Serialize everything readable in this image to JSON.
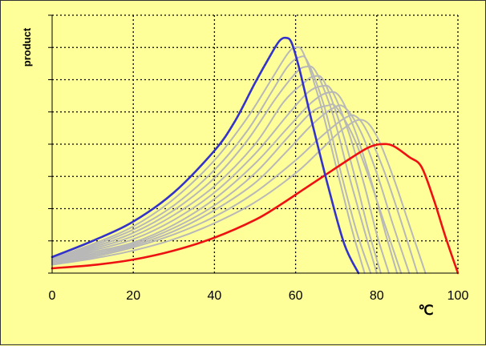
{
  "chart_data": {
    "type": "line",
    "title": "",
    "xlabel": "℃",
    "ylabel": "product",
    "xlim": [
      0,
      100
    ],
    "ylim": [
      0,
      8
    ],
    "x_ticks": [
      "0",
      "20",
      "40",
      "60",
      "80",
      "100"
    ],
    "y_gridlines": 8,
    "y_tick_labels_shown": false,
    "grid": true,
    "legend": "none",
    "colors": {
      "background": "#ffff99",
      "blue": "#3333cc",
      "red": "#ee1111",
      "gray": "#b8b8b8",
      "grid": "#000000"
    },
    "series": [
      {
        "color": "#3333cc",
        "x": [
          0,
          10,
          20,
          30,
          40,
          45,
          50,
          54,
          56,
          57.5,
          59,
          61,
          64,
          68,
          72,
          75.5
        ],
        "y": [
          0.5,
          1,
          1.6,
          2.5,
          3.8,
          4.7,
          5.9,
          6.8,
          7.2,
          7.3,
          7.15,
          6.3,
          4.7,
          2.7,
          0.9,
          0
        ]
      },
      {
        "color": "#b8b8b8",
        "x": [
          0,
          10,
          20,
          30,
          40,
          48,
          54,
          58,
          60,
          62,
          66,
          70,
          74,
          77
        ],
        "y": [
          0.45,
          0.9,
          1.45,
          2.3,
          3.5,
          4.8,
          6,
          6.8,
          7,
          6.8,
          5.3,
          3.3,
          1.3,
          0
        ]
      },
      {
        "color": "#b8b8b8",
        "x": [
          0,
          10,
          20,
          30,
          40,
          48,
          54,
          58,
          61,
          63,
          67,
          71,
          75,
          78.5
        ],
        "y": [
          0.42,
          0.85,
          1.35,
          2.1,
          3.2,
          4.4,
          5.6,
          6.4,
          6.7,
          6.55,
          5.2,
          3.2,
          1.3,
          0
        ]
      },
      {
        "color": "#b8b8b8",
        "x": [
          0,
          10,
          20,
          30,
          40,
          48,
          55,
          60,
          62.5,
          65,
          69,
          73,
          77,
          80
        ],
        "y": [
          0.4,
          0.8,
          1.25,
          1.95,
          2.95,
          4.1,
          5.4,
          6.2,
          6.4,
          6.25,
          5,
          3.1,
          1.3,
          0
        ]
      },
      {
        "color": "#b8b8b8",
        "x": [
          0,
          10,
          20,
          30,
          40,
          50,
          57,
          62,
          64.5,
          67,
          71,
          75,
          78,
          81
        ],
        "y": [
          0.38,
          0.75,
          1.15,
          1.8,
          2.7,
          4,
          5.3,
          5.9,
          6.1,
          5.95,
          4.6,
          2.8,
          1.3,
          0
        ]
      },
      {
        "color": "#b8b8b8",
        "x": [
          0,
          10,
          20,
          30,
          40,
          50,
          58,
          63,
          66.5,
          69,
          73,
          77,
          80,
          83
        ],
        "y": [
          0.36,
          0.7,
          1.05,
          1.65,
          2.5,
          3.7,
          4.9,
          5.6,
          5.8,
          5.65,
          4.4,
          2.7,
          1.2,
          0
        ]
      },
      {
        "color": "#b8b8b8",
        "x": [
          0,
          10,
          20,
          30,
          40,
          50,
          58,
          64,
          68,
          71,
          75,
          79,
          82,
          85
        ],
        "y": [
          0.34,
          0.65,
          0.95,
          1.5,
          2.3,
          3.4,
          4.5,
          5.3,
          5.6,
          5.45,
          4.3,
          2.7,
          1.3,
          0
        ]
      },
      {
        "color": "#b8b8b8",
        "x": [
          0,
          10,
          20,
          30,
          40,
          50,
          58,
          64,
          68,
          70,
          74,
          78,
          82,
          86
        ],
        "y": [
          0.32,
          0.6,
          0.9,
          1.4,
          2.1,
          3.1,
          4.2,
          5,
          5.2,
          5.15,
          4.3,
          3,
          1.5,
          0
        ]
      },
      {
        "color": "#b8b8b8",
        "x": [
          0,
          10,
          20,
          30,
          40,
          50,
          58,
          64,
          69,
          72,
          76,
          80,
          84,
          88
        ],
        "y": [
          0.3,
          0.55,
          0.85,
          1.3,
          1.95,
          2.8,
          3.8,
          4.6,
          5.1,
          5.15,
          4.4,
          3.1,
          1.5,
          0
        ]
      },
      {
        "color": "#b8b8b8",
        "x": [
          0,
          10,
          20,
          30,
          40,
          50,
          60,
          66,
          72,
          75,
          78,
          82,
          86,
          90
        ],
        "y": [
          0.28,
          0.5,
          0.8,
          1.2,
          1.75,
          2.5,
          3.5,
          4.2,
          4.8,
          4.85,
          4.3,
          3.1,
          1.6,
          0
        ]
      },
      {
        "color": "#b8b8b8",
        "x": [
          0,
          10,
          20,
          30,
          40,
          50,
          60,
          66,
          72,
          76.5,
          80,
          84,
          88,
          92
        ],
        "y": [
          0.26,
          0.45,
          0.7,
          1.05,
          1.55,
          2.2,
          3.1,
          3.8,
          4.5,
          4.75,
          4.25,
          3,
          1.5,
          0
        ]
      },
      {
        "color": "#ee1111",
        "x": [
          0,
          10,
          20,
          30,
          40,
          50,
          56,
          62,
          68,
          74,
          78,
          81,
          84,
          88,
          91,
          94,
          97,
          100
        ],
        "y": [
          0.15,
          0.25,
          0.42,
          0.7,
          1.1,
          1.65,
          2.1,
          2.6,
          3.1,
          3.6,
          3.9,
          4,
          3.95,
          3.6,
          3.3,
          2.3,
          1.1,
          0
        ]
      }
    ]
  }
}
